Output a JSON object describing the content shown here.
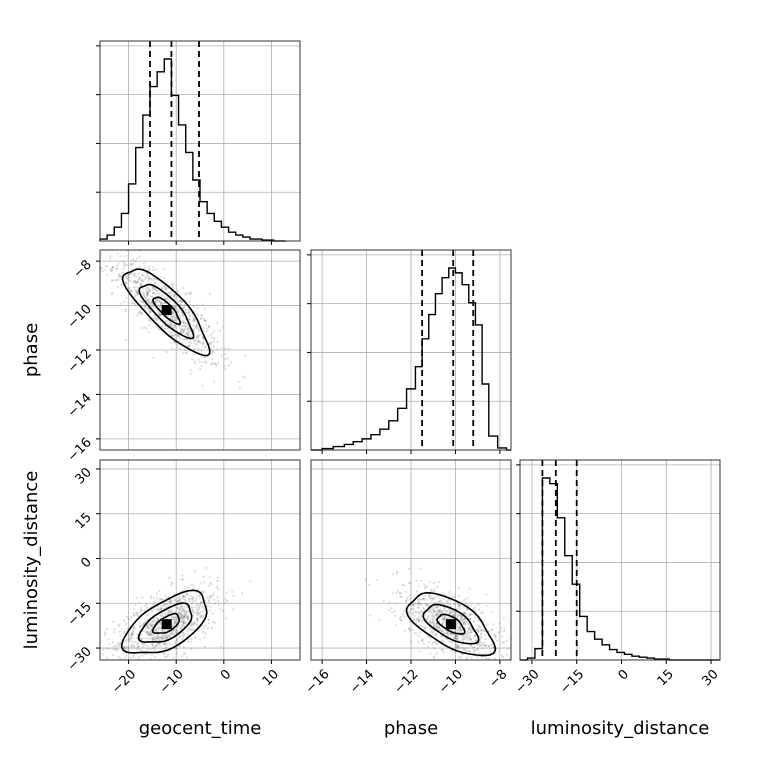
{
  "chart_data": {
    "type": "corner",
    "parameters": [
      "geocent_time",
      "phase",
      "luminosity_distance"
    ],
    "axis_labels": {
      "geocent_time": "geocent_time",
      "phase": "phase",
      "luminosity_distance": "luminosity_distance"
    },
    "ranges": {
      "geocent_time": [
        -26,
        16
      ],
      "phase": [
        -16.5,
        -7.5
      ],
      "luminosity_distance": [
        -34,
        33
      ]
    },
    "ticks": {
      "geocent_time": [
        -20,
        -10,
        0,
        10
      ],
      "phase": [
        -16,
        -14,
        -12,
        -10,
        -8
      ],
      "luminosity_distance": [
        -30,
        -15,
        0,
        15,
        30
      ]
    },
    "tick_labels": {
      "geocent_time": [
        "−20",
        "−10",
        "0",
        "10"
      ],
      "phase": [
        "−16",
        "−14",
        "−12",
        "−10",
        "−8"
      ],
      "luminosity_distance": [
        "−30",
        "−15",
        "0",
        "15",
        "30"
      ]
    },
    "quantiles": {
      "geocent_time": [
        -15.5,
        -11.0,
        -5.2
      ],
      "phase": [
        -11.5,
        -10.1,
        -9.2
      ],
      "luminosity_distance": [
        -26.5,
        -22.0,
        -15.0
      ]
    },
    "histograms": {
      "geocent_time": {
        "edges": [
          -26,
          -24.5,
          -23,
          -21.5,
          -20,
          -18.5,
          -17,
          -15.5,
          -14,
          -12.5,
          -11,
          -9.5,
          -8,
          -6.5,
          -5,
          -3.5,
          -2,
          -0.5,
          1,
          2.5,
          4,
          5.5,
          8,
          10.5,
          13
        ],
        "counts": [
          2,
          6,
          14,
          28,
          58,
          95,
          128,
          157,
          172,
          185,
          148,
          118,
          90,
          62,
          40,
          28,
          20,
          14,
          9,
          6,
          4,
          2,
          1,
          0
        ]
      },
      "phase": {
        "edges": [
          -16.5,
          -16,
          -15.5,
          -15,
          -14.6,
          -14.2,
          -13.8,
          -13.4,
          -13,
          -12.6,
          -12.2,
          -11.8,
          -11.5,
          -11.2,
          -10.9,
          -10.6,
          -10.3,
          -10,
          -9.7,
          -9.4,
          -9.1,
          -8.8,
          -8.5,
          -8.1,
          -7.7,
          -7.5
        ],
        "counts": [
          0,
          2,
          5,
          8,
          12,
          16,
          22,
          30,
          42,
          60,
          88,
          120,
          160,
          195,
          225,
          248,
          262,
          255,
          238,
          212,
          180,
          95,
          20,
          3,
          0
        ]
      },
      "luminosity_distance": {
        "edges": [
          -34,
          -31.5,
          -29,
          -26.5,
          -24,
          -21.5,
          -19,
          -16.5,
          -14,
          -11.5,
          -9,
          -6.5,
          -4,
          -1.5,
          1,
          3.5,
          6,
          8.5,
          11,
          13.5,
          16,
          20,
          24,
          29,
          33
        ],
        "counts": [
          0,
          2,
          12,
          192,
          186,
          150,
          110,
          80,
          46,
          30,
          22,
          16,
          11,
          8,
          6,
          4,
          3,
          2,
          1,
          1,
          0,
          0,
          0,
          0
        ]
      }
    },
    "correlations": {
      "phase_vs_geocent_time": {
        "mean": [
          -12.0,
          -10.2
        ],
        "std": [
          5.5,
          1.2
        ],
        "rho": -0.82
      },
      "luminosity_distance_vs_geocent_time": {
        "mean": [
          -12.0,
          -22.0
        ],
        "std": [
          5.5,
          6.5
        ],
        "rho": 0.58
      },
      "luminosity_distance_vs_phase": {
        "mean": [
          -10.2,
          -22.0
        ],
        "std": [
          1.2,
          6.5
        ],
        "rho": -0.6
      }
    },
    "contour_levels": [
      "inner",
      "middle",
      "outer"
    ],
    "grid": true
  }
}
